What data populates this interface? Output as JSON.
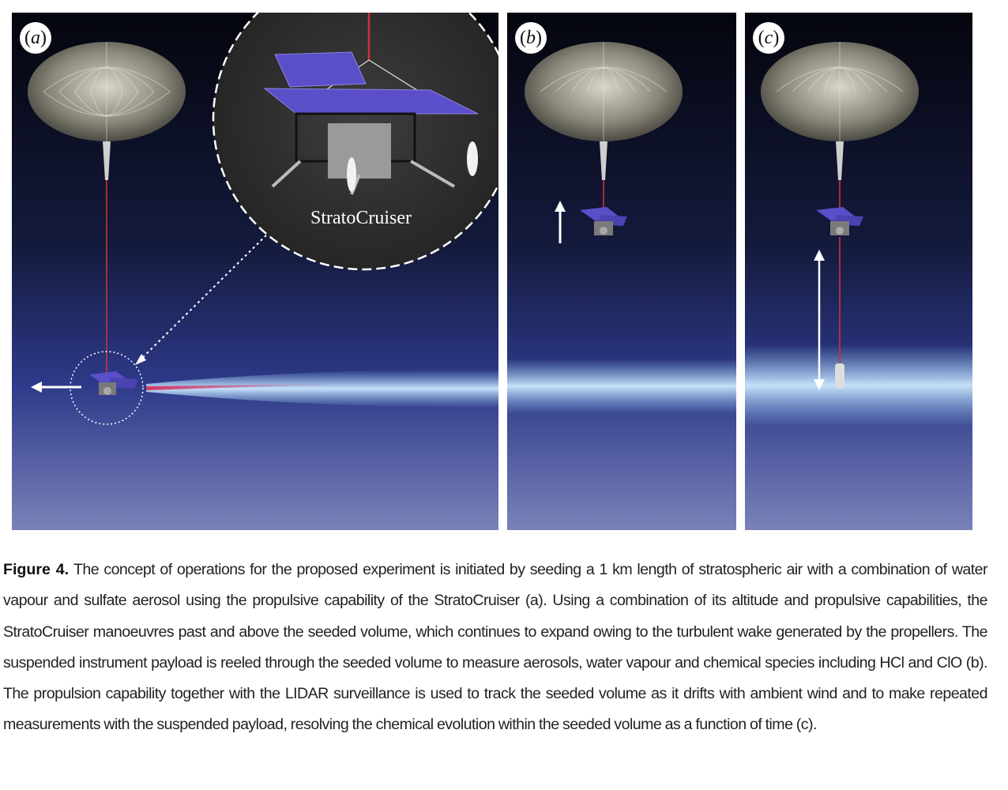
{
  "figure": {
    "panels": [
      {
        "label": "a"
      },
      {
        "label": "b"
      },
      {
        "label": "c"
      }
    ],
    "zoom_caption": "StratoCruiser",
    "caption": {
      "label": "Figure 4.",
      "text": "The concept of operations for the proposed experiment is initiated by seeding a 1 km length of stratospheric air with a combination of water vapour and sulfate aerosol using the propulsive capability of the StratoCruiser (a). Using a combination of its altitude and propulsive capabilities, the StratoCruiser manoeuvres past and above the seeded volume, which continues to expand owing to the turbulent wake generated by the propellers. The suspended instrument payload is reeled through the seeded volume to measure aerosols, water vapour and chemical species including HCl and ClO (b). The propulsion capability together with the LIDAR surveillance is used to track the seeded volume as it drifts with ambient wind and to make repeated measurements with the suspended payload, resolving the chemical evolution within the seeded volume as a function of time (c)."
    },
    "colors": {
      "sky_top": "#05060f",
      "sky_bottom": "#7a82b8",
      "tether": "#d0303a",
      "seeded_volume": "#8ec8f0",
      "wake": "#d03060",
      "solar_panel": "#5a4fc8"
    }
  }
}
